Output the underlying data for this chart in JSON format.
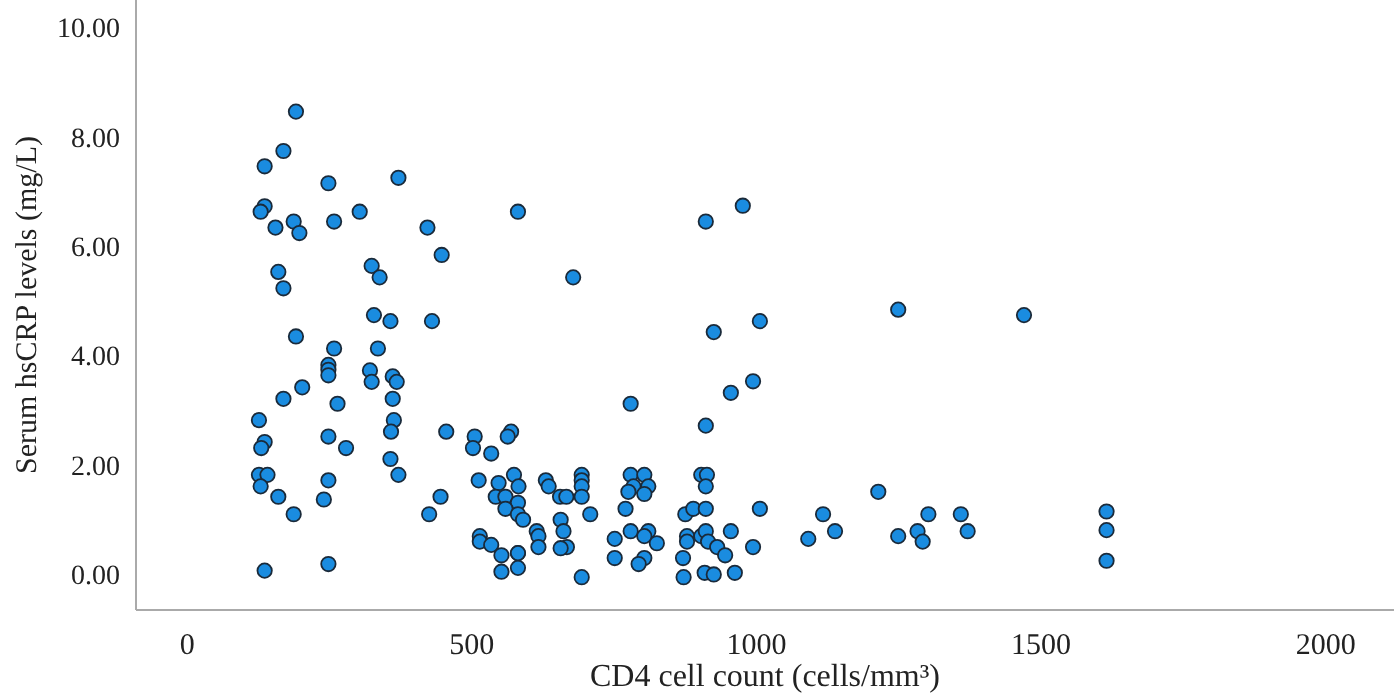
{
  "chart_data": {
    "type": "scatter",
    "xlabel": "CD4 cell count (cells/mm³)",
    "ylabel": "Serum hsCRP levels (mg/L)",
    "xlim": [
      -90,
      2120
    ],
    "xticks": [
      0,
      500,
      1000,
      1500,
      2000
    ],
    "ylim": [
      -0.65,
      10.5
    ],
    "yticks": [
      {
        "value": 0,
        "label": "0.00"
      },
      {
        "value": 2,
        "label": "2.00"
      },
      {
        "value": 4,
        "label": "4.00"
      },
      {
        "value": 6,
        "label": "6.00"
      },
      {
        "value": 8,
        "label": "8.00"
      },
      {
        "value": 10,
        "label": "10.00"
      }
    ],
    "grid": false,
    "marker": "circle",
    "series": [
      {
        "color": "#1a8ce0",
        "x": [
          191,
          169,
          136,
          248,
          371,
          136,
          129,
          187,
          155,
          197,
          258,
          303,
          422,
          581,
          447,
          160,
          169,
          324,
          338,
          678,
          191,
          328,
          357,
          430,
          258,
          335,
          248,
          248,
          248,
          321,
          324,
          361,
          368,
          202,
          169,
          264,
          361,
          126,
          363,
          136,
          130,
          248,
          279,
          358,
          455,
          505,
          502,
          534,
          569,
          563,
          357,
          126,
          141,
          129,
          248,
          371,
          160,
          240,
          187,
          445,
          425,
          512,
          547,
          574,
          582,
          542,
          559,
          581,
          559,
          581,
          590,
          630,
          635,
          655,
          666,
          693,
          693,
          693,
          693,
          708,
          656,
          614,
          617,
          661,
          667,
          656,
          617,
          514,
          514,
          534,
          552,
          581,
          581,
          581,
          552,
          693,
          136,
          248,
          751,
          751,
          976,
          911,
          925,
          1006,
          1249,
          1470,
          994,
          955,
          779,
          911,
          779,
          803,
          784,
          810,
          775,
          803,
          903,
          913,
          911,
          770,
          875,
          889,
          911,
          1006,
          1214,
          1117,
          1302,
          1359,
          779,
          810,
          803,
          825,
          803,
          793,
          878,
          878,
          903,
          911,
          915,
          931,
          945,
          955,
          994,
          871,
          872,
          909,
          925,
          962,
          1091,
          1138,
          1249,
          1283,
          1292,
          1371,
          1615,
          1615,
          1615
        ],
        "values": [
          8.46,
          7.74,
          7.46,
          7.15,
          7.25,
          6.73,
          6.63,
          6.45,
          6.34,
          6.24,
          6.45,
          6.63,
          6.34,
          6.63,
          5.84,
          5.53,
          5.23,
          5.64,
          5.43,
          5.43,
          4.35,
          4.74,
          4.63,
          4.63,
          4.13,
          4.13,
          3.83,
          3.74,
          3.64,
          3.73,
          3.52,
          3.62,
          3.52,
          3.42,
          3.21,
          3.12,
          3.21,
          2.82,
          2.82,
          2.42,
          2.31,
          2.52,
          2.31,
          2.61,
          2.61,
          2.52,
          2.31,
          2.21,
          2.61,
          2.52,
          2.11,
          1.82,
          1.82,
          1.61,
          1.72,
          1.82,
          1.42,
          1.37,
          1.1,
          1.42,
          1.1,
          1.72,
          1.67,
          1.82,
          1.61,
          1.42,
          1.42,
          1.31,
          1.2,
          1.1,
          1.0,
          1.72,
          1.61,
          1.42,
          1.42,
          1.82,
          1.72,
          1.61,
          1.42,
          1.1,
          1.0,
          0.79,
          0.7,
          0.79,
          0.5,
          0.48,
          0.5,
          0.7,
          0.6,
          0.54,
          0.35,
          0.39,
          0.12,
          0.39,
          0.05,
          -0.05,
          0.07,
          0.19,
          0.65,
          0.3,
          6.74,
          6.45,
          4.43,
          4.63,
          4.84,
          4.74,
          3.53,
          3.32,
          3.12,
          2.72,
          1.82,
          1.82,
          1.61,
          1.61,
          1.51,
          1.47,
          1.82,
          1.82,
          1.61,
          1.2,
          1.1,
          1.2,
          1.2,
          1.2,
          1.51,
          1.1,
          1.1,
          1.1,
          0.79,
          0.79,
          0.7,
          0.57,
          0.3,
          0.19,
          0.7,
          0.6,
          0.7,
          0.79,
          0.6,
          0.5,
          0.35,
          0.79,
          0.5,
          0.3,
          -0.05,
          0.03,
          0.0,
          0.03,
          0.65,
          0.79,
          0.7,
          0.79,
          0.6,
          0.79,
          1.15,
          0.81,
          0.25
        ]
      }
    ]
  }
}
